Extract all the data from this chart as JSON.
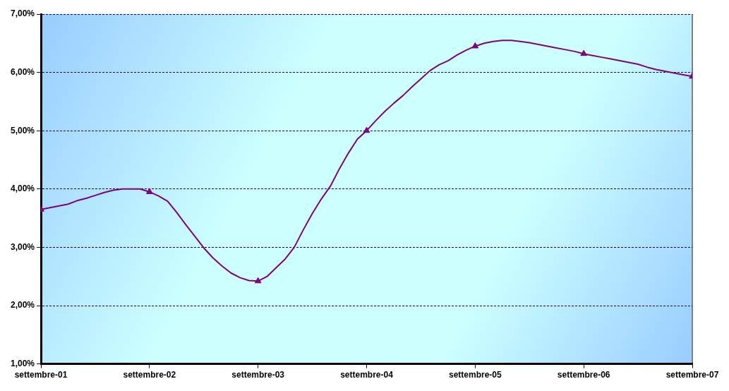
{
  "chart_data": {
    "type": "line",
    "xlim": [
      "2001-09",
      "2007-09"
    ],
    "xticks": [
      {
        "value": "2001-09",
        "label": "settembre-01"
      },
      {
        "value": "2002-09",
        "label": "settembre-02"
      },
      {
        "value": "2003-09",
        "label": "settembre-03"
      },
      {
        "value": "2004-09",
        "label": "settembre-04"
      },
      {
        "value": "2005-09",
        "label": "settembre-05"
      },
      {
        "value": "2006-09",
        "label": "settembre-06"
      },
      {
        "value": "2007-09",
        "label": "settembre-07"
      }
    ],
    "ylim": [
      1,
      7
    ],
    "yticks": [
      {
        "value": 1,
        "label": "1,00%"
      },
      {
        "value": 2,
        "label": "2,00%"
      },
      {
        "value": 3,
        "label": "3,00%"
      },
      {
        "value": 4,
        "label": "4,00%"
      },
      {
        "value": 5,
        "label": "5,00%"
      },
      {
        "value": 6,
        "label": "6,00%"
      },
      {
        "value": 7,
        "label": "7,00%"
      }
    ],
    "grid": "y",
    "legend": false,
    "series": [
      {
        "color": "#800080",
        "marker": "none",
        "x": [
          "2001-09",
          "2001-10",
          "2001-11",
          "2001-12",
          "2002-01",
          "2002-02",
          "2002-03",
          "2002-04",
          "2002-05",
          "2002-06",
          "2002-07",
          "2002-08",
          "2002-09",
          "2002-10",
          "2002-11",
          "2002-12",
          "2003-01",
          "2003-02",
          "2003-03",
          "2003-04",
          "2003-05",
          "2003-06",
          "2003-07",
          "2003-08",
          "2003-09",
          "2003-10",
          "2003-11",
          "2003-12",
          "2004-01",
          "2004-02",
          "2004-03",
          "2004-04",
          "2004-05",
          "2004-06",
          "2004-07",
          "2004-08",
          "2004-09",
          "2004-10",
          "2004-11",
          "2004-12",
          "2005-01",
          "2005-02",
          "2005-03",
          "2005-04",
          "2005-05",
          "2005-06",
          "2005-07",
          "2005-08",
          "2005-09",
          "2005-10",
          "2005-11",
          "2005-12",
          "2006-01",
          "2006-02",
          "2006-03",
          "2006-04",
          "2006-05",
          "2006-06",
          "2006-07",
          "2006-08",
          "2006-09",
          "2006-10",
          "2006-11",
          "2006-12",
          "2007-01",
          "2007-02",
          "2007-03",
          "2007-04",
          "2007-05",
          "2007-06",
          "2007-07",
          "2007-08",
          "2007-09"
        ],
        "values": [
          3.65,
          3.68,
          3.71,
          3.74,
          3.8,
          3.84,
          3.89,
          3.94,
          3.98,
          4.0,
          4.0,
          4.0,
          3.95,
          3.88,
          3.79,
          3.6,
          3.39,
          3.19,
          2.99,
          2.82,
          2.68,
          2.56,
          2.48,
          2.43,
          2.42,
          2.5,
          2.65,
          2.8,
          3.0,
          3.3,
          3.58,
          3.83,
          4.05,
          4.35,
          4.62,
          4.86,
          5.0,
          5.17,
          5.33,
          5.47,
          5.6,
          5.75,
          5.89,
          6.03,
          6.13,
          6.2,
          6.3,
          6.38,
          6.45,
          6.5,
          6.53,
          6.55,
          6.55,
          6.53,
          6.51,
          6.48,
          6.45,
          6.42,
          6.39,
          6.36,
          6.32,
          6.29,
          6.26,
          6.23,
          6.2,
          6.17,
          6.14,
          6.09,
          6.05,
          6.02,
          5.99,
          5.96,
          5.93
        ]
      },
      {
        "type": "scatter",
        "color": "#800080",
        "marker": "triangle",
        "x": [
          "2001-09",
          "2002-09",
          "2003-09",
          "2004-09",
          "2005-09",
          "2006-09",
          "2007-09"
        ],
        "values": [
          3.65,
          3.95,
          2.42,
          5.0,
          6.45,
          6.32,
          5.93
        ]
      }
    ]
  }
}
